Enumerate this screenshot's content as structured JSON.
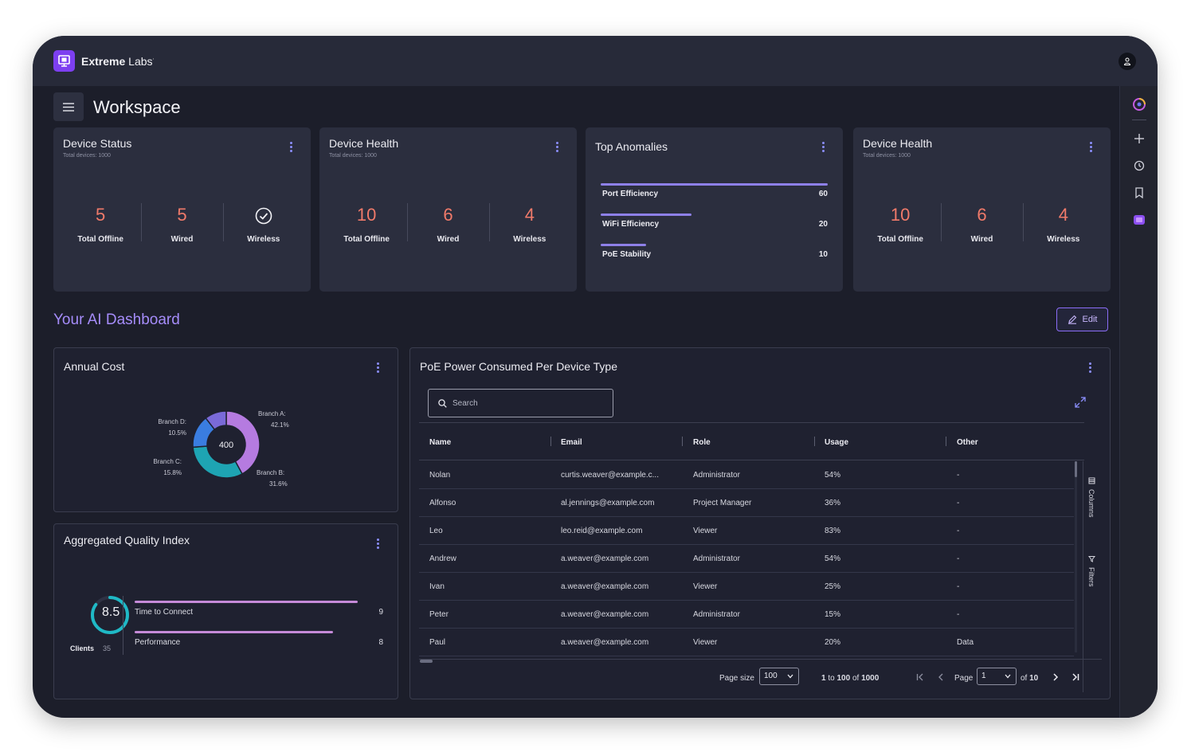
{
  "app": {
    "brand_bold": "Extreme",
    "brand_rest": " Labs",
    "brand_mark": "·"
  },
  "page": {
    "title": "Workspace"
  },
  "cards": [
    {
      "title": "Device Status",
      "subtitle": "Total devices: 1000",
      "stats": [
        {
          "value": "5",
          "label": "Total Offline"
        },
        {
          "value": "5",
          "label": "Wired"
        },
        {
          "icon": "check-circle-icon",
          "label": "Wireless"
        }
      ]
    },
    {
      "title": "Device Health",
      "subtitle": "Total devices: 1000",
      "stats": [
        {
          "value": "10",
          "label": "Total Offline"
        },
        {
          "value": "6",
          "label": "Wired"
        },
        {
          "value": "4",
          "label": "Wireless"
        }
      ]
    },
    {
      "title": "Top Anomalies",
      "items": [
        {
          "label": "Port Efficiency",
          "value": "60",
          "fraction": 1.0
        },
        {
          "label": "WiFi Efficiency",
          "value": "20",
          "fraction": 0.4
        },
        {
          "label": "PoE Stability",
          "value": "10",
          "fraction": 0.2
        }
      ]
    },
    {
      "title": "Device Health",
      "subtitle": "Total devices: 1000",
      "stats": [
        {
          "value": "10",
          "label": "Total Offline"
        },
        {
          "value": "6",
          "label": "Wired"
        },
        {
          "value": "4",
          "label": "Wireless"
        }
      ]
    }
  ],
  "ai_dashboard": {
    "title": "Your AI Dashboard",
    "edit_label": "Edit"
  },
  "annual_cost": {
    "title": "Annual Cost",
    "chart_data": {
      "type": "pie",
      "center_label": "400",
      "slices": [
        {
          "name": "Branch A:",
          "percent_label": "42.1%",
          "value": 42.1,
          "color": "#b57be0"
        },
        {
          "name": "Branch B:",
          "percent_label": "31.6%",
          "value": 31.6,
          "color": "#1ea4b3"
        },
        {
          "name": "Branch C:",
          "percent_label": "15.8%",
          "value": 15.8,
          "color": "#3a7de0"
        },
        {
          "name": "Branch D:",
          "percent_label": "10.5%",
          "value": 10.5,
          "color": "#7a6ad8"
        }
      ]
    }
  },
  "quality_index": {
    "title": "Aggregated Quality Index",
    "score": "8.5",
    "score_fraction": 0.85,
    "clients_label": "Clients",
    "clients_value": "35",
    "metrics": [
      {
        "label": "Time to Connect",
        "value": "9",
        "fraction": 1.0
      },
      {
        "label": "Performance",
        "value": "8",
        "fraction": 0.89
      }
    ]
  },
  "poe": {
    "title": "PoE Power Consumed Per Device Type",
    "search_placeholder": "Search",
    "columns": [
      "Name",
      "Email",
      "Role",
      "Usage",
      "Other"
    ],
    "rows": [
      [
        "Nolan",
        "curtis.weaver@example.c...",
        "Administrator",
        "54%",
        "-"
      ],
      [
        "Alfonso",
        "al.jennings@example.com",
        "Project Manager",
        "36%",
        "-"
      ],
      [
        "Leo",
        "leo.reid@example.com",
        "Viewer",
        "83%",
        "-"
      ],
      [
        "Andrew",
        "a.weaver@example.com",
        "Administrator",
        "54%",
        "-"
      ],
      [
        "Ivan",
        "a.weaver@example.com",
        "Viewer",
        "25%",
        "-"
      ],
      [
        "Peter",
        "a.weaver@example.com",
        "Administrator",
        "15%",
        "-"
      ],
      [
        "Paul",
        "a.weaver@example.com",
        "Viewer",
        "20%",
        "Data"
      ]
    ],
    "side_tabs": {
      "columns": "Columns",
      "filters": "Filters"
    },
    "pager": {
      "page_size_label": "Page size",
      "page_size": "100",
      "range_from": "1",
      "range_to_word": "to",
      "range_to": "100",
      "range_of_word": "of",
      "total": "1000",
      "page_label": "Page",
      "page": "1",
      "of_label": "of",
      "page_count": "10"
    }
  },
  "colors": {
    "accent": "#8b6df7",
    "stat": "#f07a6a",
    "background": "#1c1e2a",
    "card": "#2b2e3e"
  }
}
